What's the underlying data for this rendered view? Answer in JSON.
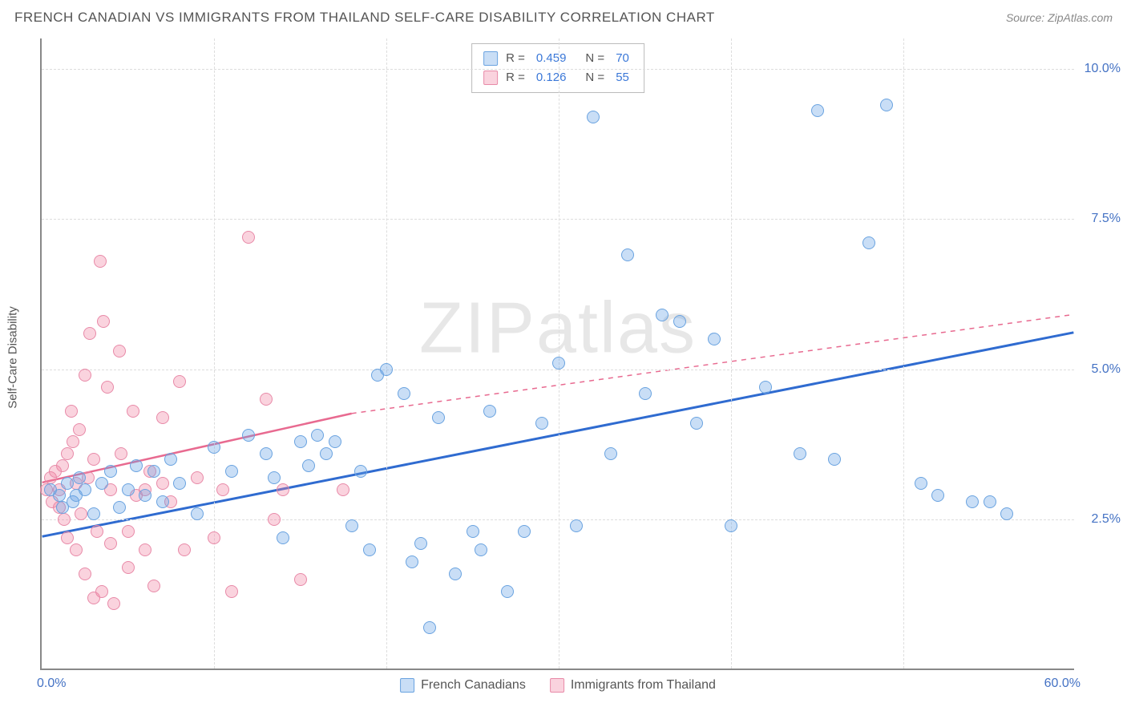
{
  "header": {
    "title": "FRENCH CANADIAN VS IMMIGRANTS FROM THAILAND SELF-CARE DISABILITY CORRELATION CHART",
    "source_prefix": "Source: ",
    "source_name": "ZipAtlas.com"
  },
  "watermark": "ZIPatlas",
  "axes": {
    "y_title": "Self-Care Disability",
    "x_min_label": "0.0%",
    "x_max_label": "60.0%",
    "xlim": [
      0,
      60
    ],
    "ylim": [
      0,
      10.5
    ],
    "y_ticks": [
      {
        "v": 2.5,
        "label": "2.5%"
      },
      {
        "v": 5.0,
        "label": "5.0%"
      },
      {
        "v": 7.5,
        "label": "7.5%"
      },
      {
        "v": 10.0,
        "label": "10.0%"
      }
    ],
    "x_grid": [
      10,
      20,
      30,
      40,
      50
    ]
  },
  "legend_top": {
    "rows": [
      {
        "swatch": "blue",
        "r_label": "R =",
        "r": "0.459",
        "n_label": "N =",
        "n": "70"
      },
      {
        "swatch": "pink",
        "r_label": "R =",
        "r": "0.126",
        "n_label": "N =",
        "n": "55"
      }
    ]
  },
  "legend_bottom": {
    "items": [
      {
        "swatch": "blue",
        "label": "French Canadians"
      },
      {
        "swatch": "pink",
        "label": "Immigrants from Thailand"
      }
    ]
  },
  "series": {
    "blue": {
      "color_fill": "rgba(100,160,230,0.35)",
      "color_stroke": "#6aa3e0",
      "trend": {
        "x1": 0,
        "y1": 2.2,
        "x2": 60,
        "y2": 5.6,
        "stroke": "#2f6bd0",
        "width": 3,
        "dash": "none"
      },
      "points": [
        [
          0.5,
          3.0
        ],
        [
          1,
          2.9
        ],
        [
          1.2,
          2.7
        ],
        [
          1.5,
          3.1
        ],
        [
          1.8,
          2.8
        ],
        [
          2,
          2.9
        ],
        [
          2.2,
          3.2
        ],
        [
          2.5,
          3.0
        ],
        [
          3,
          2.6
        ],
        [
          3.5,
          3.1
        ],
        [
          4,
          3.3
        ],
        [
          4.5,
          2.7
        ],
        [
          5,
          3.0
        ],
        [
          5.5,
          3.4
        ],
        [
          6,
          2.9
        ],
        [
          6.5,
          3.3
        ],
        [
          7,
          2.8
        ],
        [
          7.5,
          3.5
        ],
        [
          8,
          3.1
        ],
        [
          9,
          2.6
        ],
        [
          10,
          3.7
        ],
        [
          11,
          3.3
        ],
        [
          12,
          3.9
        ],
        [
          13,
          3.6
        ],
        [
          14,
          2.2
        ],
        [
          15,
          3.8
        ],
        [
          15.5,
          3.4
        ],
        [
          16,
          3.9
        ],
        [
          16.5,
          3.6
        ],
        [
          17,
          3.8
        ],
        [
          18,
          2.4
        ],
        [
          18.5,
          3.3
        ],
        [
          19,
          2.0
        ],
        [
          20,
          5.0
        ],
        [
          21,
          4.6
        ],
        [
          21.5,
          1.8
        ],
        [
          22,
          2.1
        ],
        [
          22.5,
          0.7
        ],
        [
          23,
          4.2
        ],
        [
          24,
          1.6
        ],
        [
          25,
          2.3
        ],
        [
          25.5,
          2.0
        ],
        [
          26,
          4.3
        ],
        [
          27,
          1.3
        ],
        [
          28,
          2.3
        ],
        [
          29,
          4.1
        ],
        [
          30,
          5.1
        ],
        [
          31,
          2.4
        ],
        [
          32,
          9.2
        ],
        [
          33,
          3.6
        ],
        [
          34,
          6.9
        ],
        [
          35,
          4.6
        ],
        [
          36,
          5.9
        ],
        [
          37,
          5.8
        ],
        [
          38,
          4.1
        ],
        [
          39,
          5.5
        ],
        [
          40,
          2.4
        ],
        [
          42,
          4.7
        ],
        [
          44,
          3.6
        ],
        [
          45,
          9.3
        ],
        [
          46,
          3.5
        ],
        [
          48,
          7.1
        ],
        [
          49,
          9.4
        ],
        [
          51,
          3.1
        ],
        [
          52,
          2.9
        ],
        [
          54,
          2.8
        ],
        [
          55,
          2.8
        ],
        [
          56,
          2.6
        ],
        [
          13.5,
          3.2
        ],
        [
          19.5,
          4.9
        ]
      ]
    },
    "pink": {
      "color_fill": "rgba(240,130,160,0.35)",
      "color_stroke": "#e88aa8",
      "trend_solid": {
        "x1": 0,
        "y1": 3.1,
        "x2": 18,
        "y2": 4.25,
        "stroke": "#e86a90",
        "width": 2.5
      },
      "trend_dash": {
        "x1": 18,
        "y1": 4.25,
        "x2": 60,
        "y2": 5.9,
        "stroke": "#e86a90",
        "width": 1.5,
        "dash": "6 6"
      },
      "points": [
        [
          0.3,
          3.0
        ],
        [
          0.5,
          3.2
        ],
        [
          0.6,
          2.8
        ],
        [
          0.8,
          3.3
        ],
        [
          1,
          3.0
        ],
        [
          1,
          2.7
        ],
        [
          1.2,
          3.4
        ],
        [
          1.3,
          2.5
        ],
        [
          1.5,
          3.6
        ],
        [
          1.5,
          2.2
        ],
        [
          1.7,
          4.3
        ],
        [
          1.8,
          3.8
        ],
        [
          2,
          2.0
        ],
        [
          2,
          3.1
        ],
        [
          2.2,
          4.0
        ],
        [
          2.3,
          2.6
        ],
        [
          2.5,
          1.6
        ],
        [
          2.5,
          4.9
        ],
        [
          2.7,
          3.2
        ],
        [
          2.8,
          5.6
        ],
        [
          3,
          1.2
        ],
        [
          3,
          3.5
        ],
        [
          3.2,
          2.3
        ],
        [
          3.4,
          6.8
        ],
        [
          3.5,
          1.3
        ],
        [
          3.6,
          5.8
        ],
        [
          3.8,
          4.7
        ],
        [
          4,
          2.1
        ],
        [
          4,
          3.0
        ],
        [
          4.2,
          1.1
        ],
        [
          4.5,
          5.3
        ],
        [
          4.6,
          3.6
        ],
        [
          5,
          2.3
        ],
        [
          5,
          1.7
        ],
        [
          5.3,
          4.3
        ],
        [
          5.5,
          2.9
        ],
        [
          6,
          3.0
        ],
        [
          6,
          2.0
        ],
        [
          6.3,
          3.3
        ],
        [
          6.5,
          1.4
        ],
        [
          7,
          3.1
        ],
        [
          7,
          4.2
        ],
        [
          7.5,
          2.8
        ],
        [
          8,
          4.8
        ],
        [
          8.3,
          2.0
        ],
        [
          9,
          3.2
        ],
        [
          10,
          2.2
        ],
        [
          10.5,
          3.0
        ],
        [
          11,
          1.3
        ],
        [
          12,
          7.2
        ],
        [
          13,
          4.5
        ],
        [
          13.5,
          2.5
        ],
        [
          14,
          3.0
        ],
        [
          15,
          1.5
        ],
        [
          17.5,
          3.0
        ]
      ]
    }
  }
}
